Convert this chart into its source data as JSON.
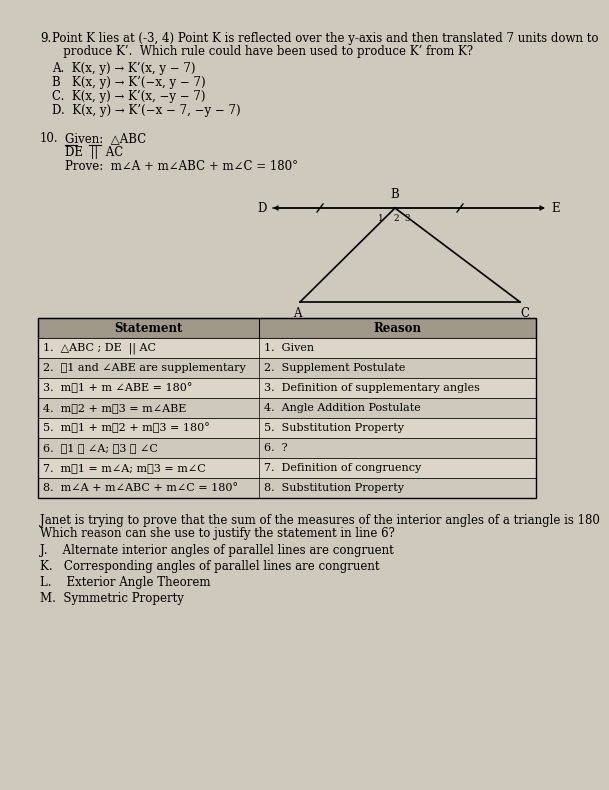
{
  "paper_color": "#cfc8bc",
  "q9_number": "9.",
  "q9_line1": "Point K lies at (-3, 4) Point K is reflected over the y-axis and then translated 7 units down to",
  "q9_line2": "   produce K’.  Which rule could have been used to produce K’ from K?",
  "q9_options": [
    "A.  K(x, y) → K’(x, y − 7)",
    "B   K(x, y) → K’(−x, y − 7)",
    "C.  K(x, y) → K’(x, −y − 7)",
    "D.  K(x, y) → K’(−x − 7, −y − 7)"
  ],
  "q10_number": "10.",
  "q10_given1": "Given:  △ABC",
  "q10_given2": "DE  ||  AC",
  "q10_prove": "Prove:  m∠A + m∠ABC + m∠C = 180°",
  "table_header": [
    "Statement",
    "Reason"
  ],
  "table_rows": [
    [
      "1.  △ABC ; DE  || AC",
      "1.  Given"
    ],
    [
      "2.  ∡1 and ∠ABE are supplementary",
      "2.  Supplement Postulate"
    ],
    [
      "3.  m∡1 + m ∠ABE = 180°",
      "3.  Definition of supplementary angles"
    ],
    [
      "4.  m∡2 + m∡3 = m∠ABE",
      "4.  Angle Addition Postulate"
    ],
    [
      "5.  m∡1 + m∡2 + m∡3 = 180°",
      "5.  Substitution Property"
    ],
    [
      "6.  ∡1 ≅ ∠A; ∡3 ≅ ∠C",
      "6.  ?"
    ],
    [
      "7.  m∡1 = m∠A; m∡3 = m∠C",
      "7.  Definition of congruency"
    ],
    [
      "8.  m∠A + m∠ABC + m∠C = 180°",
      "8.  Substitution Property"
    ]
  ],
  "q10_question_1": "Janet is trying to prove that the sum of the measures of the interior angles of a triangle is 180",
  "q10_question_2": "Which reason can she use to justify the statement in line 6?",
  "q10_options": [
    "J.    Alternate interior angles of parallel lines are congruent",
    "K.   Corresponding angles of parallel lines are congruent",
    "L.    Exterior Angle Theorem",
    "M.  Symmetric Property"
  ],
  "table_header_color": "#a09888",
  "table_row_color1": "#ddd5c8",
  "table_row_color2": "#cfc8bc",
  "fs": 8.5,
  "fs_table": 8.0
}
